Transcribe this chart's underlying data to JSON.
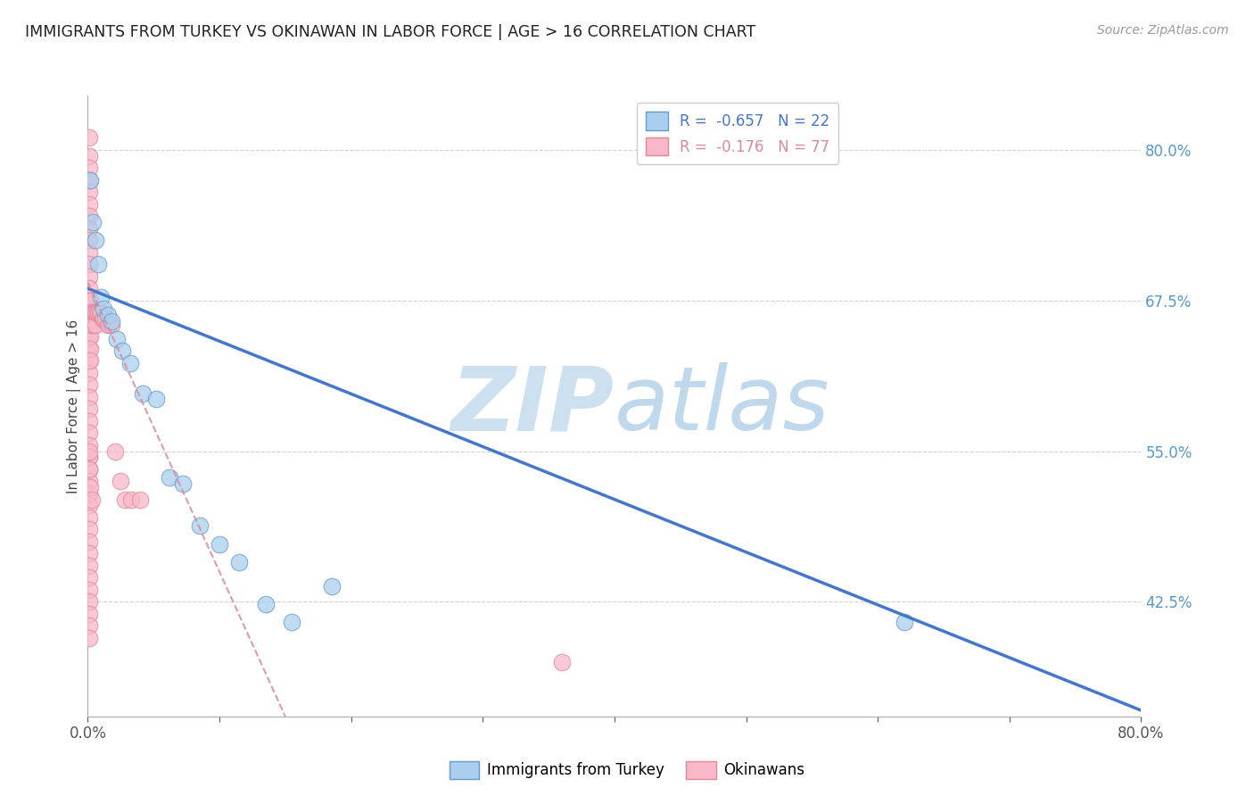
{
  "title": "IMMIGRANTS FROM TURKEY VS OKINAWAN IN LABOR FORCE | AGE > 16 CORRELATION CHART",
  "source": "Source: ZipAtlas.com",
  "ylabel": "In Labor Force | Age > 16",
  "xlim": [
    0.0,
    0.8
  ],
  "ylim": [
    0.33,
    0.845
  ],
  "yticks": [
    0.425,
    0.55,
    0.675,
    0.8
  ],
  "ytick_labels": [
    "42.5%",
    "55.0%",
    "67.5%",
    "80.0%"
  ],
  "xticks": [
    0.0,
    0.1,
    0.2,
    0.3,
    0.4,
    0.5,
    0.6,
    0.7,
    0.8
  ],
  "xtick_labels_show": [
    "0.0%",
    "80.0%"
  ],
  "turkey_R": -0.657,
  "turkey_N": 22,
  "okinawan_R": -0.176,
  "okinawan_N": 77,
  "turkey_color": "#aacfee",
  "okinawan_color": "#f8b8c8",
  "turkey_edge_color": "#6699cc",
  "okinawan_edge_color": "#e08898",
  "trend_turkey_color": "#4477cc",
  "trend_okinawan_color": "#dd8899",
  "watermark_color": "#ddeeff",
  "background_color": "#ffffff",
  "turkey_x": [
    0.002,
    0.004,
    0.006,
    0.008,
    0.01,
    0.012,
    0.015,
    0.018,
    0.022,
    0.026,
    0.032,
    0.042,
    0.052,
    0.062,
    0.072,
    0.085,
    0.1,
    0.115,
    0.135,
    0.155,
    0.185,
    0.62
  ],
  "turkey_y": [
    0.775,
    0.74,
    0.725,
    0.705,
    0.678,
    0.668,
    0.663,
    0.658,
    0.643,
    0.633,
    0.623,
    0.598,
    0.593,
    0.528,
    0.523,
    0.488,
    0.473,
    0.458,
    0.423,
    0.408,
    0.438,
    0.408
  ],
  "okinawan_x": [
    0.001,
    0.001,
    0.001,
    0.001,
    0.001,
    0.001,
    0.001,
    0.001,
    0.001,
    0.001,
    0.001,
    0.001,
    0.001,
    0.001,
    0.001,
    0.001,
    0.001,
    0.001,
    0.001,
    0.001,
    0.001,
    0.001,
    0.001,
    0.001,
    0.001,
    0.001,
    0.001,
    0.001,
    0.001,
    0.001,
    0.001,
    0.001,
    0.001,
    0.001,
    0.001,
    0.001,
    0.001,
    0.001,
    0.001,
    0.001,
    0.001,
    0.001,
    0.002,
    0.002,
    0.002,
    0.002,
    0.002,
    0.002,
    0.002,
    0.003,
    0.003,
    0.003,
    0.004,
    0.004,
    0.005,
    0.006,
    0.006,
    0.007,
    0.008,
    0.009,
    0.01,
    0.011,
    0.012,
    0.013,
    0.015,
    0.016,
    0.018,
    0.021,
    0.025,
    0.028,
    0.033,
    0.04,
    0.001,
    0.001,
    0.001,
    0.001,
    0.36
  ],
  "okinawan_y": [
    0.81,
    0.795,
    0.785,
    0.775,
    0.765,
    0.755,
    0.745,
    0.735,
    0.725,
    0.715,
    0.705,
    0.695,
    0.685,
    0.675,
    0.665,
    0.655,
    0.645,
    0.635,
    0.625,
    0.615,
    0.605,
    0.595,
    0.585,
    0.575,
    0.565,
    0.555,
    0.545,
    0.535,
    0.525,
    0.515,
    0.505,
    0.495,
    0.485,
    0.475,
    0.465,
    0.455,
    0.445,
    0.435,
    0.425,
    0.545,
    0.535,
    0.675,
    0.665,
    0.655,
    0.645,
    0.635,
    0.625,
    0.52,
    0.675,
    0.665,
    0.655,
    0.51,
    0.665,
    0.655,
    0.665,
    0.655,
    0.665,
    0.665,
    0.665,
    0.665,
    0.665,
    0.66,
    0.66,
    0.66,
    0.655,
    0.655,
    0.655,
    0.55,
    0.525,
    0.51,
    0.51,
    0.51,
    0.415,
    0.405,
    0.395,
    0.55,
    0.375
  ],
  "trend_turkey_x0": 0.0,
  "trend_turkey_y0": 0.685,
  "trend_turkey_x1": 0.8,
  "trend_turkey_y1": 0.335,
  "trend_okinawan_x0": 0.0,
  "trend_okinawan_y0": 0.69,
  "trend_okinawan_x1": 0.15,
  "trend_okinawan_y1": 0.33
}
